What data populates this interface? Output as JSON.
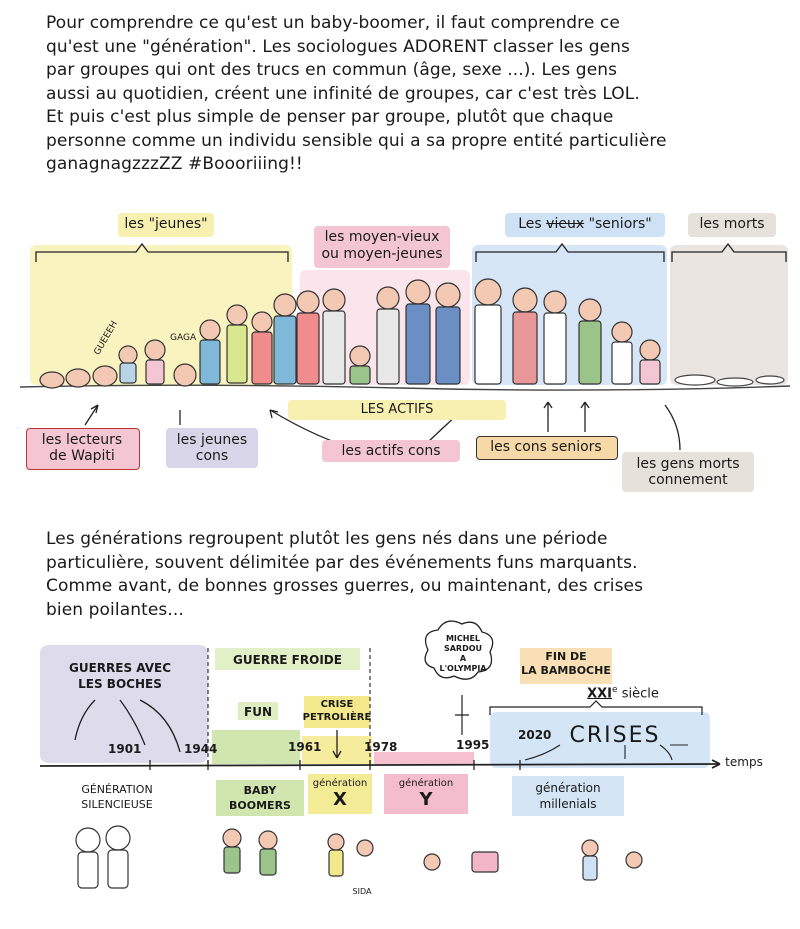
{
  "intro_paragraph": [
    "Pour comprendre ce qu'est un baby-boomer, il faut comprendre ce",
    "qu'est une \"génération\". Les sociologues ADORENT classer les gens",
    "par groupes qui ont des trucs en commun (âge, sexe ...). Les gens",
    "aussi au quotidien, créent une infinité de groupes, car c'est très LOL.",
    "Et puis c'est plus simple de penser par groupe, plutôt que chaque",
    "personne comme un individu sensible qui a sa propre entité particulière",
    "ganagnagzzzZZ #Boooriiing!!"
  ],
  "crowd_scene": {
    "group_labels": {
      "jeunes": "les \"jeunes\"",
      "moyens": [
        "les moyen-vieux",
        "ou moyen-jeunes"
      ],
      "seniors_prefix": "Les",
      "seniors_struck": "vieux",
      "seniors_suffix": "\"seniors\"",
      "morts": "les morts"
    },
    "speech_bubbles": [
      "GUEEEH",
      "GAGA"
    ],
    "bottom_labels": {
      "lecteurs": [
        "les lecteurs",
        "de Wapiti"
      ],
      "jeunes_cons": [
        "les jeunes",
        "cons"
      ],
      "actifs": "LES ACTIFS",
      "actifs_cons": "les actifs cons",
      "cons_seniors": "les cons seniors",
      "morts_connement": [
        "les gens morts",
        "connement"
      ]
    },
    "colors": {
      "yellow": "#f7f0b0",
      "pink": "#f4c6d4",
      "blue": "#cfe2f5",
      "grey": "#e6e1da",
      "lavender": "#d8d5e8",
      "orange": "#f7d9a8"
    }
  },
  "second_paragraph": [
    "Les générations regroupent plutôt les gens nés dans une période",
    "particulière, souvent délimitée par des événements funs marquants.",
    "Comme avant, de bonnes grosses guerres, ou maintenant, des crises",
    "bien poilantes..."
  ],
  "timeline": {
    "events": {
      "guerres": [
        "GUERRES AVEC",
        "LES BOCHES"
      ],
      "guerre_froide": "GUERRE FROIDE",
      "fun": "FUN",
      "crise_petroliere": [
        "CRISE",
        "PETROLIÈRE"
      ],
      "sardou": [
        "MICHEL",
        "SARDOU",
        "A",
        "L'OLYMPIA"
      ],
      "fin_bamboche": [
        "FIN DE",
        "LA BAMBOCHE"
      ],
      "siecle": "XXI",
      "siecle_sup": "e",
      "siecle_word": "siècle",
      "crises": "CRISES"
    },
    "years": [
      "1901",
      "1944",
      "1961",
      "1978",
      "1995",
      "2020"
    ],
    "axis_label": "temps",
    "generations": {
      "silencieuse": [
        "GÉNÉRATION",
        "SILENCIEUSE"
      ],
      "baby_boomers": [
        "BABY",
        "BOOMERS"
      ],
      "x_small": "génération",
      "x_big": "X",
      "y_small": "génération",
      "y_big": "Y",
      "millenials": [
        "génération",
        "millenials"
      ]
    },
    "sida": "SIDA"
  }
}
